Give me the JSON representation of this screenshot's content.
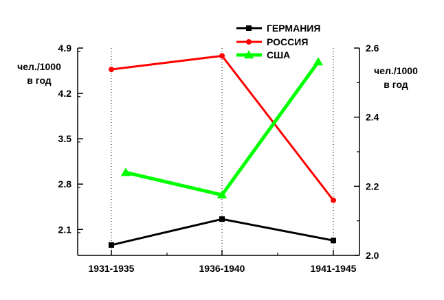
{
  "chart_data": {
    "type": "line",
    "categories": [
      "1931-1935",
      "1936-1940",
      "1941-1945"
    ],
    "left_axis": {
      "label_line1": "чел./1000",
      "label_line2": "в год",
      "ylim": [
        1.7,
        4.9
      ],
      "ticks": [
        "4.9",
        "4.2",
        "3.5",
        "2.8",
        "2.1"
      ]
    },
    "right_axis": {
      "label_line1": "чел./1000",
      "label_line2": "в год",
      "ylim": [
        2.0,
        2.6
      ],
      "ticks": [
        "2.6",
        "2.4",
        "2.2",
        "2.0"
      ]
    },
    "series": [
      {
        "name": "ГЕРМАНИЯ",
        "color": "#000000",
        "marker": "square",
        "axis": "left",
        "values": [
          1.86,
          2.26,
          1.93
        ]
      },
      {
        "name": "РОССИЯ",
        "color": "#ff0000",
        "marker": "circle",
        "axis": "left",
        "values": [
          4.57,
          4.78,
          2.55
        ]
      },
      {
        "name": "США",
        "color": "#00ff00",
        "marker": "triangle",
        "axis": "right",
        "values": [
          2.24,
          2.175,
          2.56
        ]
      }
    ],
    "grid": "vertical dotted at categories",
    "legend_position": "top-center"
  }
}
